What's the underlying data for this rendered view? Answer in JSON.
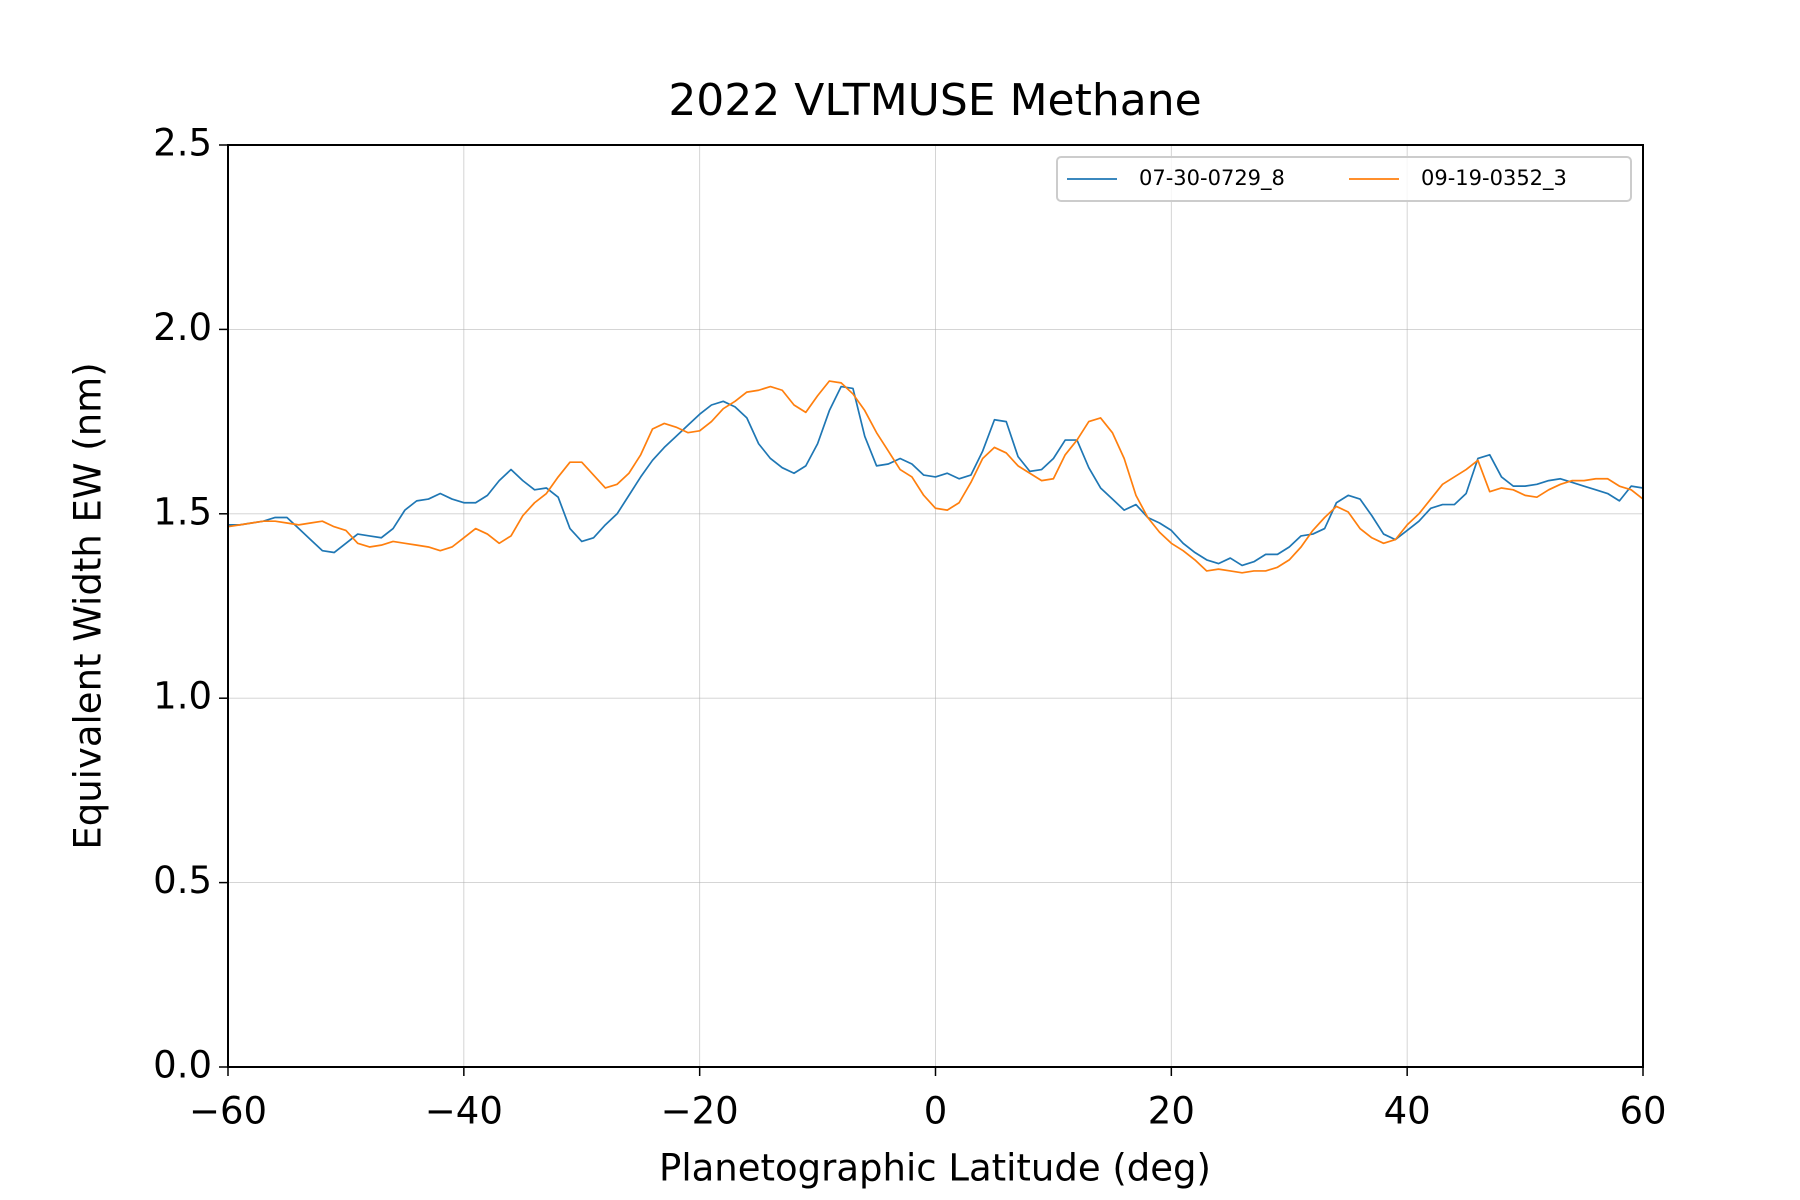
{
  "chart_data": {
    "type": "line",
    "title": "2022 VLTMUSE Methane",
    "x_label": "Planetographic Latitude (deg)",
    "y_label": "Equivalent Width EW (nm)",
    "x": [
      -60,
      -59,
      -58,
      -57,
      -56,
      -55,
      -54,
      -53,
      -52,
      -51,
      -50,
      -49,
      -48,
      -47,
      -46,
      -45,
      -44,
      -43,
      -42,
      -41,
      -40,
      -39,
      -38,
      -37,
      -36,
      -35,
      -34,
      -33,
      -32,
      -31,
      -30,
      -29,
      -28,
      -27,
      -26,
      -25,
      -24,
      -23,
      -22,
      -21,
      -20,
      -19,
      -18,
      -17,
      -16,
      -15,
      -14,
      -13,
      -12,
      -11,
      -10,
      -9,
      -8,
      -7,
      -6,
      -5,
      -4,
      -3,
      -2,
      -1,
      0,
      1,
      2,
      3,
      4,
      5,
      6,
      7,
      8,
      9,
      10,
      11,
      12,
      13,
      14,
      15,
      16,
      17,
      18,
      19,
      20,
      21,
      22,
      23,
      24,
      25,
      26,
      27,
      28,
      29,
      30,
      31,
      32,
      33,
      34,
      35,
      36,
      37,
      38,
      39,
      40,
      41,
      42,
      43,
      44,
      45,
      46,
      47,
      48,
      49,
      50,
      51,
      52,
      53,
      54,
      55,
      56,
      57,
      58,
      59,
      60
    ],
    "series": [
      {
        "name": "07-30-0729_8",
        "color": "#1f77b4",
        "values": [
          1.47,
          1.47,
          1.475,
          1.48,
          1.49,
          1.49,
          1.46,
          1.43,
          1.4,
          1.395,
          1.42,
          1.445,
          1.44,
          1.435,
          1.46,
          1.51,
          1.535,
          1.54,
          1.555,
          1.54,
          1.53,
          1.53,
          1.55,
          1.59,
          1.62,
          1.59,
          1.565,
          1.57,
          1.545,
          1.46,
          1.425,
          1.435,
          1.47,
          1.5,
          1.55,
          1.6,
          1.645,
          1.68,
          1.71,
          1.74,
          1.77,
          1.795,
          1.805,
          1.79,
          1.76,
          1.69,
          1.65,
          1.625,
          1.61,
          1.63,
          1.69,
          1.78,
          1.845,
          1.84,
          1.71,
          1.63,
          1.635,
          1.65,
          1.635,
          1.605,
          1.6,
          1.61,
          1.595,
          1.605,
          1.67,
          1.755,
          1.75,
          1.655,
          1.615,
          1.62,
          1.65,
          1.7,
          1.7,
          1.625,
          1.57,
          1.54,
          1.51,
          1.525,
          1.49,
          1.475,
          1.455,
          1.42,
          1.395,
          1.375,
          1.365,
          1.38,
          1.36,
          1.37,
          1.39,
          1.39,
          1.41,
          1.44,
          1.445,
          1.46,
          1.53,
          1.55,
          1.54,
          1.495,
          1.445,
          1.43,
          1.455,
          1.48,
          1.515,
          1.525,
          1.525,
          1.555,
          1.65,
          1.66,
          1.6,
          1.575,
          1.575,
          1.58,
          1.59,
          1.595,
          1.585,
          1.575,
          1.565,
          1.555,
          1.535,
          1.575,
          1.57
        ]
      },
      {
        "name": "09-19-0352_3",
        "color": "#ff7f0e",
        "values": [
          1.465,
          1.47,
          1.475,
          1.48,
          1.48,
          1.475,
          1.47,
          1.475,
          1.48,
          1.465,
          1.455,
          1.42,
          1.41,
          1.415,
          1.425,
          1.42,
          1.415,
          1.41,
          1.4,
          1.41,
          1.435,
          1.46,
          1.445,
          1.42,
          1.44,
          1.495,
          1.53,
          1.555,
          1.6,
          1.64,
          1.64,
          1.605,
          1.57,
          1.58,
          1.61,
          1.66,
          1.73,
          1.745,
          1.735,
          1.72,
          1.725,
          1.75,
          1.785,
          1.805,
          1.83,
          1.835,
          1.845,
          1.835,
          1.795,
          1.775,
          1.82,
          1.86,
          1.855,
          1.825,
          1.78,
          1.72,
          1.67,
          1.62,
          1.6,
          1.55,
          1.515,
          1.51,
          1.53,
          1.585,
          1.65,
          1.68,
          1.665,
          1.63,
          1.61,
          1.59,
          1.595,
          1.66,
          1.7,
          1.75,
          1.76,
          1.72,
          1.65,
          1.55,
          1.49,
          1.45,
          1.42,
          1.4,
          1.375,
          1.345,
          1.35,
          1.345,
          1.34,
          1.345,
          1.345,
          1.355,
          1.375,
          1.41,
          1.455,
          1.49,
          1.52,
          1.505,
          1.46,
          1.435,
          1.42,
          1.43,
          1.47,
          1.5,
          1.54,
          1.58,
          1.6,
          1.62,
          1.645,
          1.56,
          1.57,
          1.565,
          1.55,
          1.545,
          1.565,
          1.58,
          1.59,
          1.59,
          1.595,
          1.595,
          1.575,
          1.565,
          1.54
        ]
      }
    ],
    "xlim": [
      -60,
      60
    ],
    "ylim": [
      0,
      2.5
    ],
    "xticks": [
      {
        "value": -60,
        "label": "−60"
      },
      {
        "value": -40,
        "label": "−40"
      },
      {
        "value": -20,
        "label": "−20"
      },
      0,
      20,
      40,
      60
    ],
    "yticks": [
      {
        "value": 0,
        "label": "0.0"
      },
      0.5,
      {
        "value": 1,
        "label": "1.0"
      },
      1.5,
      {
        "value": 2,
        "label": "2.0"
      },
      2.5
    ],
    "grid": true,
    "legend": "upper right"
  }
}
